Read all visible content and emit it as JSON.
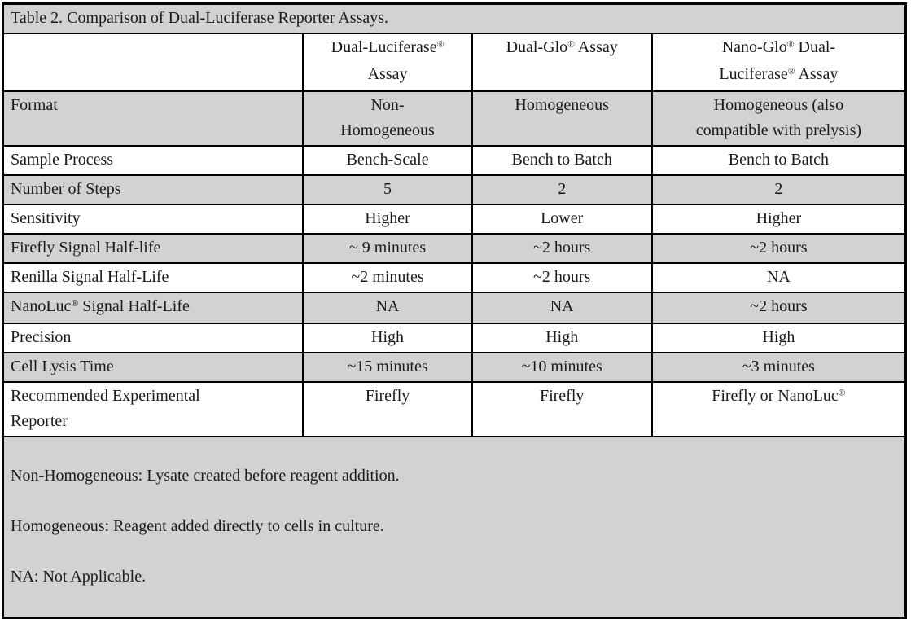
{
  "table": {
    "title": "Table 2. Comparison of Dual-Luciferase Reporter Assays.",
    "columns": [
      "",
      "Dual-Luciferase®\nAssay",
      "Dual-Glo® Assay",
      "Nano-Glo® Dual-\nLuciferase® Assay"
    ],
    "rows": [
      {
        "label": "Format",
        "shaded": true,
        "values": [
          "Non-\nHomogeneous",
          "Homogeneous",
          "Homogeneous (also\ncompatible with prelysis)"
        ]
      },
      {
        "label": "Sample Process",
        "shaded": false,
        "values": [
          "Bench-Scale",
          "Bench to Batch",
          "Bench to Batch"
        ]
      },
      {
        "label": "Number of Steps",
        "shaded": true,
        "values": [
          "5",
          "2",
          "2"
        ]
      },
      {
        "label": "Sensitivity",
        "shaded": false,
        "values": [
          "Higher",
          "Lower",
          "Higher"
        ]
      },
      {
        "label": "Firefly Signal Half-life",
        "shaded": true,
        "values": [
          "~ 9 minutes",
          "~2 hours",
          "~2 hours"
        ]
      },
      {
        "label": "Renilla Signal Half-Life",
        "shaded": false,
        "values": [
          "~2 minutes",
          "~2 hours",
          "NA"
        ]
      },
      {
        "label": "NanoLuc® Signal Half-Life",
        "shaded": true,
        "values": [
          "NA",
          "NA",
          "~2 hours"
        ]
      },
      {
        "label": "Precision",
        "shaded": false,
        "values": [
          "High",
          "High",
          "High"
        ]
      },
      {
        "label": "Cell Lysis Time",
        "shaded": true,
        "values": [
          "~15 minutes",
          "~10 minutes",
          "~3 minutes"
        ]
      },
      {
        "label": "Recommended Experimental\nReporter",
        "shaded": false,
        "values": [
          "Firefly",
          "Firefly",
          "Firefly or NanoLuc®"
        ]
      }
    ],
    "footnotes": [
      "Non-Homogeneous: Lysate created before reagent addition.",
      "Homogeneous: Reagent added directly to cells in culture.",
      "NA: Not Applicable."
    ],
    "colors": {
      "shaded_row": "#d2d2d2",
      "border_color": "#000000",
      "text_color": "#1a1a1a"
    }
  }
}
